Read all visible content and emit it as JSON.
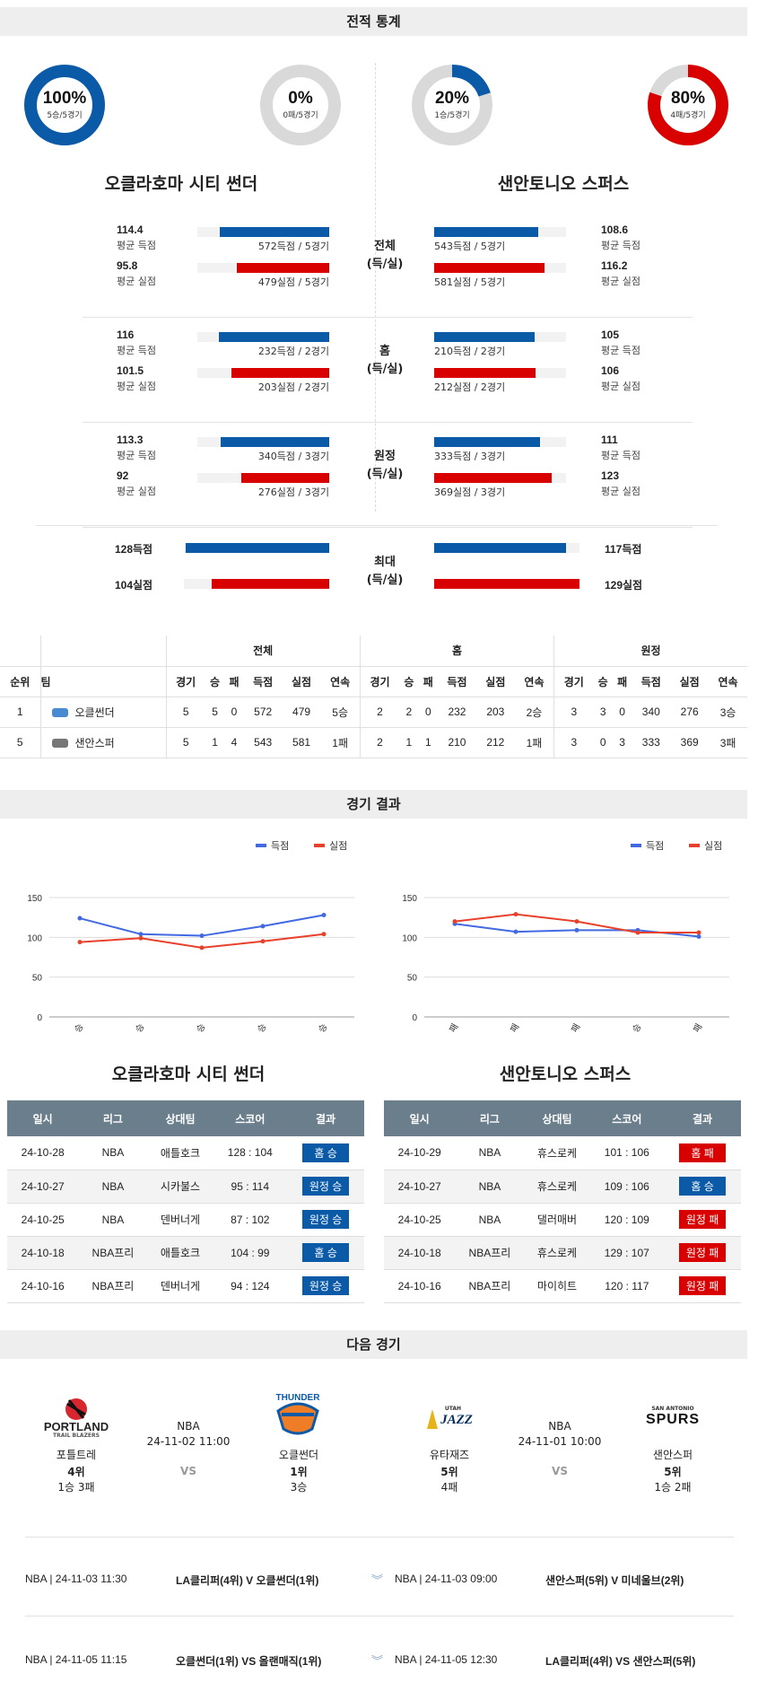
{
  "sections": {
    "stats": "전적 통계",
    "results": "경기 결과",
    "next": "다음 경기"
  },
  "donuts": [
    {
      "pct": "100%",
      "sub": "5승/5경기",
      "value": 1.0,
      "color": "#0b5aa8"
    },
    {
      "pct": "0%",
      "sub": "0패/5경기",
      "value": 0.0,
      "color": "#d90000"
    },
    {
      "pct": "20%",
      "sub": "1승/5경기",
      "value": 0.2,
      "color": "#0b5aa8"
    },
    {
      "pct": "80%",
      "sub": "4패/5경기",
      "value": 0.8,
      "color": "#d90000"
    }
  ],
  "teams": {
    "left": "오클라호마 시티 썬더",
    "right": "샌안토니오 스퍼스"
  },
  "stats": {
    "overall": {
      "mid": [
        "전체",
        "(득/실)"
      ],
      "l_score": "114.4",
      "l_score_lab": "평균 득점",
      "l_score_cap": "572득점 / 5경기",
      "l_score_frac": 0.83,
      "l_allow": "95.8",
      "l_allow_lab": "평균 실점",
      "l_allow_cap": "479실점 / 5경기",
      "l_allow_frac": 0.7,
      "r_score": "108.6",
      "r_score_lab": "평균 득점",
      "r_score_cap": "543득점 / 5경기",
      "r_score_frac": 0.79,
      "r_allow": "116.2",
      "r_allow_lab": "평균 실점",
      "r_allow_cap": "581실점 / 5경기",
      "r_allow_frac": 0.84
    },
    "home": {
      "mid": [
        "홈",
        "(득/실)"
      ],
      "l_score": "116",
      "l_score_lab": "평균 득점",
      "l_score_cap": "232득점 / 2경기",
      "l_score_frac": 0.84,
      "l_allow": "101.5",
      "l_allow_lab": "평균 실점",
      "l_allow_cap": "203실점 / 2경기",
      "l_allow_frac": 0.74,
      "r_score": "105",
      "r_score_lab": "평균 득점",
      "r_score_cap": "210득점 / 2경기",
      "r_score_frac": 0.76,
      "r_allow": "106",
      "r_allow_lab": "평균 실점",
      "r_allow_cap": "212실점 / 2경기",
      "r_allow_frac": 0.77
    },
    "away": {
      "mid": [
        "원정",
        "(득/실)"
      ],
      "l_score": "113.3",
      "l_score_lab": "평균 득점",
      "l_score_cap": "340득점 / 3경기",
      "l_score_frac": 0.82,
      "l_allow": "92",
      "l_allow_lab": "평균 실점",
      "l_allow_cap": "276실점 / 3경기",
      "l_allow_frac": 0.67,
      "r_score": "111",
      "r_score_lab": "평균 득점",
      "r_score_cap": "333득점 / 3경기",
      "r_score_frac": 0.8,
      "r_allow": "123",
      "r_allow_lab": "평균 실점",
      "r_allow_cap": "369실점 / 3경기",
      "r_allow_frac": 0.89
    },
    "max": {
      "mid": [
        "최대",
        "(득/실)"
      ],
      "l_score": "128득점",
      "l_score_frac": 0.99,
      "l_allow": "104실점",
      "l_allow_frac": 0.81,
      "r_score": "117득점",
      "r_score_frac": 0.91,
      "r_allow": "129실점",
      "r_allow_frac": 1.0
    }
  },
  "standings": {
    "groups": [
      "전체",
      "홈",
      "원정"
    ],
    "headers": [
      "순위",
      "팀",
      "경기",
      "승",
      "패",
      "득점",
      "실점",
      "연속",
      "경기",
      "승",
      "패",
      "득점",
      "실점",
      "연속",
      "경기",
      "승",
      "패",
      "득점",
      "실점",
      "연속"
    ],
    "rows": [
      [
        "1",
        "오클썬더",
        "5",
        "5",
        "0",
        "572",
        "479",
        "5승",
        "2",
        "2",
        "0",
        "232",
        "203",
        "2승",
        "3",
        "3",
        "0",
        "340",
        "276",
        "3승"
      ],
      [
        "5",
        "샌안스퍼",
        "5",
        "1",
        "4",
        "543",
        "581",
        "1패",
        "2",
        "1",
        "1",
        "210",
        "212",
        "1패",
        "3",
        "0",
        "3",
        "333",
        "369",
        "3패"
      ]
    ]
  },
  "legend": {
    "score": "득점",
    "allow": "실점"
  },
  "chart_data": [
    {
      "type": "line",
      "x": [
        "승",
        "승",
        "승",
        "승",
        "승"
      ],
      "series": [
        {
          "name": "득점",
          "values": [
            124,
            104,
            102,
            114,
            128
          ],
          "color": "#4169e1"
        },
        {
          "name": "실점",
          "values": [
            94,
            99,
            87,
            95,
            104
          ],
          "color": "#e8412b"
        }
      ],
      "ylim": [
        0,
        150
      ],
      "yticks": [
        0,
        50,
        100,
        150
      ],
      "grid": true,
      "legend": "top-right"
    },
    {
      "type": "line",
      "x": [
        "패",
        "패",
        "패",
        "승",
        "패"
      ],
      "series": [
        {
          "name": "득점",
          "values": [
            117,
            107,
            109,
            109,
            101
          ],
          "color": "#4169e1"
        },
        {
          "name": "실점",
          "values": [
            120,
            129,
            120,
            106,
            106
          ],
          "color": "#e8412b"
        }
      ],
      "ylim": [
        0,
        150
      ],
      "yticks": [
        0,
        50,
        100,
        150
      ],
      "grid": true,
      "legend": "top-right"
    }
  ],
  "results": {
    "headers": [
      "일시",
      "리그",
      "상대팀",
      "스코어",
      "결과"
    ],
    "left": [
      [
        "24-10-28",
        "NBA",
        "애틀호크",
        "128 : 104",
        "홈 승",
        "#0b5aa8"
      ],
      [
        "24-10-27",
        "NBA",
        "시카불스",
        "95 : 114",
        "원정 승",
        "#0b5aa8"
      ],
      [
        "24-10-25",
        "NBA",
        "덴버너게",
        "87 : 102",
        "원정 승",
        "#0b5aa8"
      ],
      [
        "24-10-18",
        "NBA프리",
        "애틀호크",
        "104 : 99",
        "홈 승",
        "#0b5aa8"
      ],
      [
        "24-10-16",
        "NBA프리",
        "덴버너게",
        "94 : 124",
        "원정 승",
        "#0b5aa8"
      ]
    ],
    "right": [
      [
        "24-10-29",
        "NBA",
        "휴스로케",
        "101 : 106",
        "홈 패",
        "#d90000"
      ],
      [
        "24-10-27",
        "NBA",
        "휴스로케",
        "109 : 106",
        "홈 승",
        "#0b5aa8"
      ],
      [
        "24-10-25",
        "NBA",
        "댈러매버",
        "120 : 109",
        "원정 패",
        "#d90000"
      ],
      [
        "24-10-18",
        "NBA프리",
        "휴스로케",
        "129 : 107",
        "원정 패",
        "#d90000"
      ],
      [
        "24-10-16",
        "NBA프리",
        "마이히트",
        "120 : 117",
        "원정 패",
        "#d90000"
      ]
    ]
  },
  "next_games": {
    "left": {
      "league": "NBA",
      "datetime": "24-11-02 11:00",
      "vs": "VS",
      "home": {
        "logo": "PORTLAND",
        "logo_sub": "TRAIL BLAZERS",
        "name": "포틀트레",
        "rank": "4위",
        "record": "1승 3패"
      },
      "away": {
        "logo": "THUNDER",
        "name": "오클썬더",
        "rank": "1위",
        "record": "3승"
      }
    },
    "right": {
      "league": "NBA",
      "datetime": "24-11-01 10:00",
      "vs": "VS",
      "home": {
        "logo": "JAZZ",
        "logo_sub": "UTAH",
        "name": "유타재즈",
        "rank": "5위",
        "record": "4패"
      },
      "away": {
        "logo": "SPURS",
        "logo_sub": "SAN ANTONIO",
        "name": "샌안스퍼",
        "rank": "5위",
        "record": "1승 2패"
      }
    }
  },
  "schedule": [
    {
      "left_meta": "NBA | 24-11-03 11:30",
      "left_match": "LA클리퍼(4위) V  오클썬더(1위)",
      "right_meta": "NBA | 24-11-03 09:00",
      "right_match": "샌안스퍼(5위) V  미네울브(2위)"
    },
    {
      "left_meta": "NBA | 24-11-05 11:15",
      "left_match": "오클썬더(1위) VS 올랜매직(1위)",
      "right_meta": "NBA | 24-11-05 12:30",
      "right_match": "LA클리퍼(4위) VS 샌안스퍼(5위)"
    }
  ]
}
